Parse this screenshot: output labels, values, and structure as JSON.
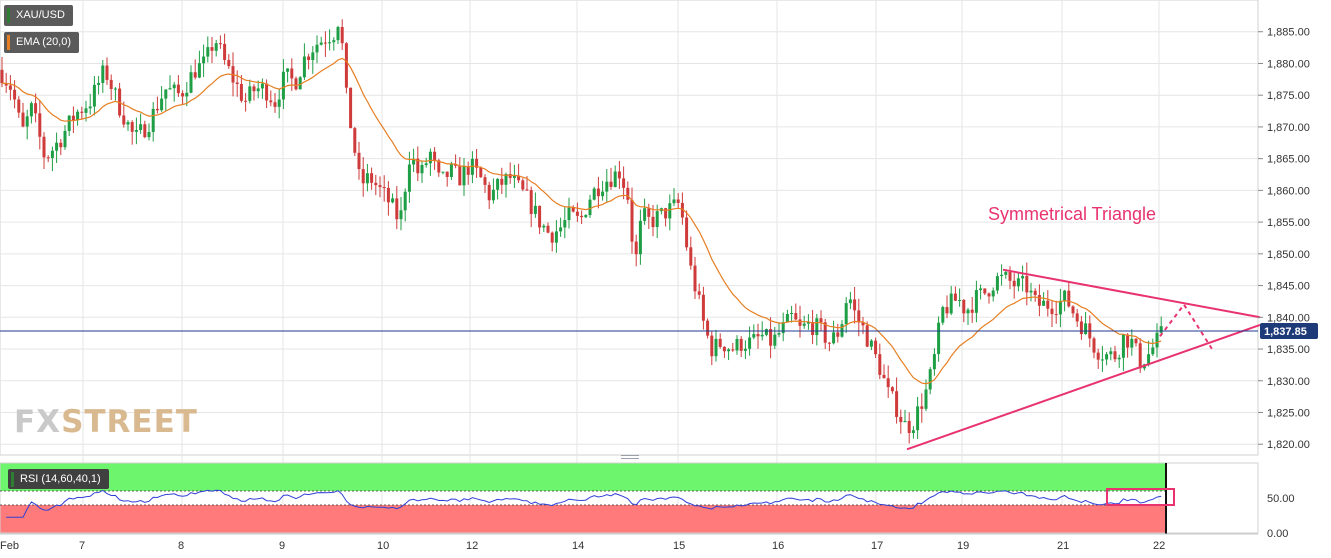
{
  "header": {
    "symbol": "XAU/USD",
    "ema_label": "EMA (20,0)",
    "rsi_label": "RSI (14,60,40,1)"
  },
  "watermark": {
    "part1": "FX",
    "part2": "STREET"
  },
  "colors": {
    "up": "#1e9e45",
    "down": "#cf3a3a",
    "ema": "#e67e22",
    "pattern": "#e8336e",
    "price_line": "#1f3a93",
    "rsi_line": "#2f3fd6",
    "rsi_overbought": "#6ef56e",
    "rsi_oversold": "#ff7b7b",
    "grid": "#e6e6e6",
    "axis_text": "#333333"
  },
  "chart_data": {
    "type": "candlestick",
    "symbol": "XAU/USD",
    "indicators": [
      "EMA (20,0)",
      "RSI (14,60,40,1)"
    ],
    "x_tick_labels": [
      "Feb",
      "7",
      "8",
      "9",
      "10",
      "12",
      "14",
      "15",
      "16",
      "17",
      "19",
      "21",
      "22"
    ],
    "y_ticks": [
      1820,
      1825,
      1830,
      1835,
      1840,
      1845,
      1850,
      1855,
      1860,
      1865,
      1870,
      1875,
      1880,
      1885
    ],
    "y_tick_labels": [
      "1,820.00",
      "1,825.00",
      "1,830.00",
      "1,835.00",
      "1,840.00",
      "1,845.00",
      "1,850.00",
      "1,855.00",
      "1,860.00",
      "1,865.00",
      "1,870.00",
      "1,875.00",
      "1,880.00",
      "1,885.00"
    ],
    "ylim": [
      1818.3,
      1890.0
    ],
    "current_price": 1837.85,
    "current_price_label": "1,837.85",
    "annotation": "Symmetrical Triangle",
    "price_path": [
      [
        0,
        1879
      ],
      [
        12,
        1876
      ],
      [
        22,
        1869
      ],
      [
        32,
        1873
      ],
      [
        45,
        1865
      ],
      [
        60,
        1868
      ],
      [
        75,
        1872
      ],
      [
        90,
        1874
      ],
      [
        105,
        1879
      ],
      [
        120,
        1873
      ],
      [
        135,
        1868
      ],
      [
        150,
        1871
      ],
      [
        165,
        1876
      ],
      [
        180,
        1875
      ],
      [
        195,
        1879
      ],
      [
        205,
        1880
      ],
      [
        215,
        1884
      ],
      [
        225,
        1880
      ],
      [
        235,
        1877
      ],
      [
        245,
        1874
      ],
      [
        255,
        1876
      ],
      [
        265,
        1876
      ],
      [
        275,
        1874
      ],
      [
        285,
        1878
      ],
      [
        295,
        1877
      ],
      [
        305,
        1881
      ],
      [
        315,
        1883
      ],
      [
        325,
        1884
      ],
      [
        335,
        1885
      ],
      [
        340,
        1888
      ],
      [
        345,
        1876
      ],
      [
        352,
        1869
      ],
      [
        360,
        1861
      ],
      [
        370,
        1862
      ],
      [
        380,
        1860
      ],
      [
        390,
        1858
      ],
      [
        400,
        1855
      ],
      [
        410,
        1866
      ],
      [
        420,
        1862
      ],
      [
        430,
        1866
      ],
      [
        440,
        1861
      ],
      [
        450,
        1863
      ],
      [
        460,
        1862
      ],
      [
        470,
        1864
      ],
      [
        480,
        1862
      ],
      [
        490,
        1859
      ],
      [
        500,
        1861
      ],
      [
        510,
        1862
      ],
      [
        520,
        1860
      ],
      [
        530,
        1858
      ],
      [
        540,
        1855
      ],
      [
        550,
        1853
      ],
      [
        560,
        1854
      ],
      [
        570,
        1856
      ],
      [
        580,
        1855
      ],
      [
        590,
        1859
      ],
      [
        600,
        1861
      ],
      [
        610,
        1862
      ],
      [
        620,
        1863
      ],
      [
        628,
        1859
      ],
      [
        635,
        1848
      ],
      [
        642,
        1856
      ],
      [
        650,
        1855
      ],
      [
        660,
        1856
      ],
      [
        670,
        1857
      ],
      [
        680,
        1858
      ],
      [
        690,
        1848
      ],
      [
        698,
        1843
      ],
      [
        705,
        1838
      ],
      [
        712,
        1835
      ],
      [
        722,
        1836
      ],
      [
        732,
        1835
      ],
      [
        742,
        1836
      ],
      [
        752,
        1836
      ],
      [
        762,
        1837
      ],
      [
        772,
        1836
      ],
      [
        782,
        1838
      ],
      [
        792,
        1840
      ],
      [
        800,
        1838
      ],
      [
        810,
        1839
      ],
      [
        820,
        1838
      ],
      [
        830,
        1836
      ],
      [
        840,
        1838
      ],
      [
        848,
        1844
      ],
      [
        856,
        1840
      ],
      [
        864,
        1838
      ],
      [
        872,
        1835
      ],
      [
        880,
        1832
      ],
      [
        888,
        1828
      ],
      [
        896,
        1826
      ],
      [
        904,
        1823
      ],
      [
        912,
        1823
      ],
      [
        920,
        1826
      ],
      [
        928,
        1829
      ],
      [
        935,
        1834
      ],
      [
        942,
        1841
      ],
      [
        950,
        1842
      ],
      [
        958,
        1843
      ],
      [
        966,
        1841
      ],
      [
        976,
        1843
      ],
      [
        986,
        1844
      ],
      [
        996,
        1846
      ],
      [
        1006,
        1846
      ],
      [
        1016,
        1845
      ],
      [
        1026,
        1845
      ],
      [
        1036,
        1842
      ],
      [
        1046,
        1842
      ],
      [
        1056,
        1842
      ],
      [
        1066,
        1843
      ],
      [
        1076,
        1840
      ],
      [
        1086,
        1838
      ],
      [
        1096,
        1835
      ],
      [
        1106,
        1834
      ],
      [
        1116,
        1834
      ],
      [
        1124,
        1837
      ],
      [
        1132,
        1836
      ],
      [
        1140,
        1833
      ],
      [
        1148,
        1834
      ],
      [
        1156,
        1836
      ],
      [
        1164,
        1837.85
      ]
    ],
    "triangle": {
      "upper": [
        [
          1003,
          1847.5
        ],
        [
          1260,
          1840.0
        ]
      ],
      "lower": [
        [
          907,
          1819.2
        ],
        [
          1260,
          1838.8
        ]
      ],
      "projection": [
        [
          1160,
          1837
        ],
        [
          1184,
          1842
        ],
        [
          1212,
          1835
        ]
      ]
    },
    "rsi": {
      "levels": [
        60,
        40
      ],
      "tick_labels": [
        "50.00",
        "0.00"
      ],
      "range": [
        0,
        100
      ]
    }
  }
}
